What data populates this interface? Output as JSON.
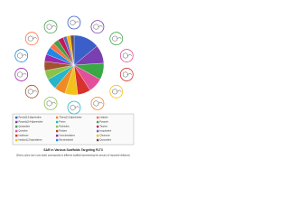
{
  "chart_data": {
    "type": "pie",
    "title": "SAR in Various Scaffolds Targeting FLT3",
    "subtitle": "(Every colour (as in pie chart) corresponds to different scaffold representing the percent of reported inhibitors)",
    "categories": [
      "Pyrrolo[2,3-d]pyrimidine",
      "Pyrazolo[3,4-d]pyrimidine",
      "Quinazoline",
      "Quinoline",
      "Indolinone",
      "Imidazo[1,2-b]pyridazine",
      "Thieno[2,3-d]pyrimidine",
      "Purine",
      "Pyrimidine",
      "Pyridine",
      "Urea derivatives",
      "Benzimidazole",
      "Indazole",
      "Pyrazole",
      "Triazine",
      "Isoquinoline",
      "Chromone",
      "Quinoxaline"
    ],
    "values": [
      14,
      10,
      9,
      8,
      7,
      7,
      6,
      6,
      5,
      5,
      4,
      4,
      3,
      3,
      3,
      2,
      2,
      2
    ],
    "colors": [
      "#3b5fc9",
      "#7a3fb0",
      "#3aa845",
      "#e34f9a",
      "#d8322d",
      "#f2c21b",
      "#f08a24",
      "#26b5c9",
      "#8bc34a",
      "#a0522d",
      "#9c27b0",
      "#1e88e5",
      "#ff7043",
      "#43a047",
      "#c2185b",
      "#5c6bc0",
      "#ffb300",
      "#6d4c41"
    ]
  }
}
